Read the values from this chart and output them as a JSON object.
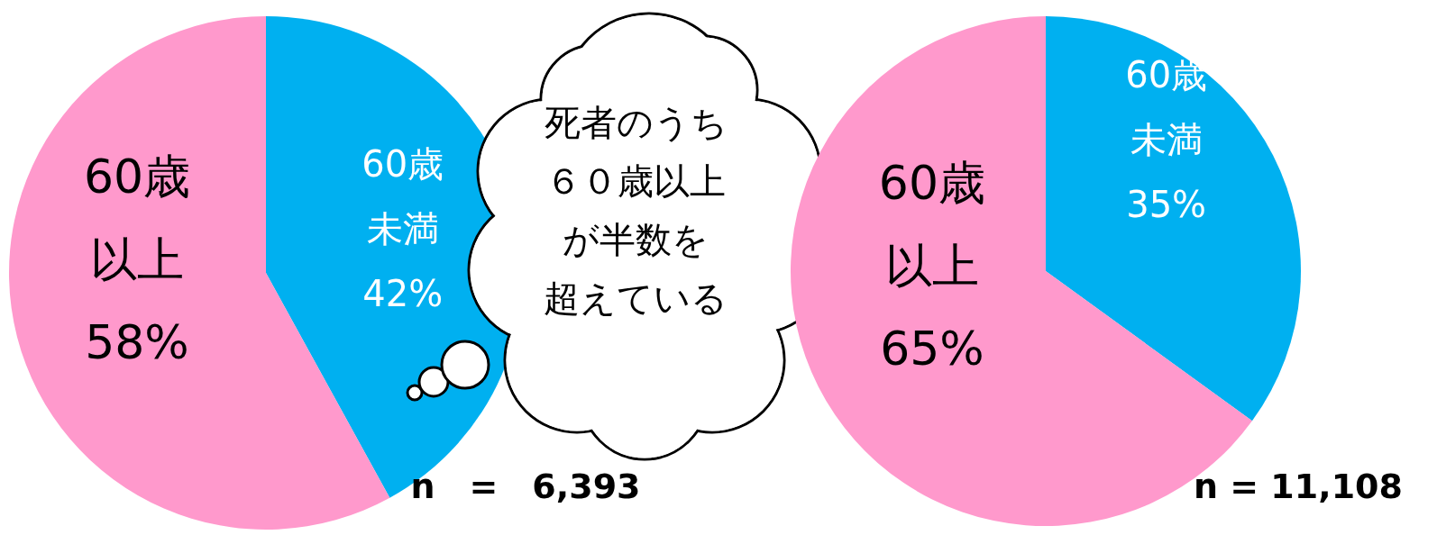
{
  "chart_data": [
    {
      "type": "pie",
      "categories": [
        "60歳未満",
        "60歳以上"
      ],
      "values": [
        42,
        58
      ],
      "colors": [
        "#00b0f0",
        "#ff99cc"
      ],
      "value_labels": [
        "42%",
        "58%"
      ],
      "annotations": [
        "n　=　6,393",
        "死者のうち",
        "６０歳以上",
        "が半数を",
        "超えている"
      ]
    },
    {
      "type": "pie",
      "categories": [
        "60歳未満",
        "60歳以上"
      ],
      "values": [
        35,
        65
      ],
      "colors": [
        "#00b0f0",
        "#ff99cc"
      ],
      "value_labels": [
        "35%",
        "65%"
      ],
      "annotations": [
        "n = 11,108"
      ]
    }
  ]
}
